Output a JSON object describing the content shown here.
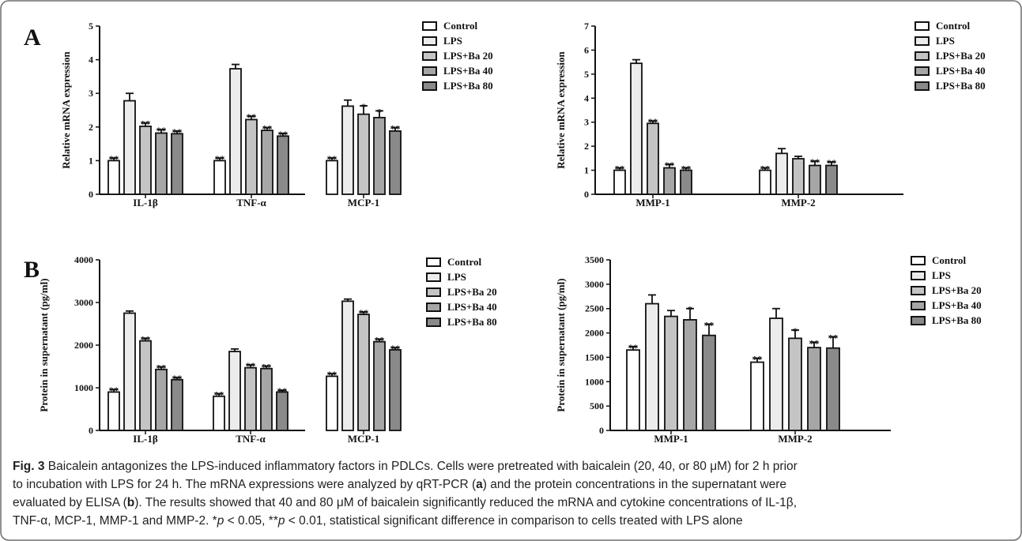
{
  "panels": {
    "a": {
      "letter": "A"
    },
    "b": {
      "letter": "B"
    }
  },
  "series_colors": [
    "#ffffff",
    "#ececec",
    "#c4c4c4",
    "#a6a6a6",
    "#8a8a8a"
  ],
  "chart_data": [
    {
      "type": "bar",
      "panel": "A",
      "ylabel": "Relative mRNA expression",
      "ylim": [
        0,
        5
      ],
      "yticks": [
        0,
        1,
        2,
        3,
        4,
        5
      ],
      "categories": [
        "IL-1β",
        "TNF-α",
        "MCP-1"
      ],
      "series": [
        {
          "name": "Control",
          "values": [
            1.0,
            1.0,
            1.0
          ],
          "errors": [
            0.08,
            0.08,
            0.08
          ],
          "sig": [
            "**",
            "**",
            "**"
          ]
        },
        {
          "name": "LPS",
          "values": [
            2.78,
            3.73,
            2.62
          ],
          "errors": [
            0.22,
            0.13,
            0.18
          ],
          "sig": [
            "",
            "",
            ""
          ]
        },
        {
          "name": "LPS+Ba 20",
          "values": [
            2.02,
            2.22,
            2.38
          ],
          "errors": [
            0.1,
            0.1,
            0.25
          ],
          "sig": [
            "**",
            "**",
            "*"
          ]
        },
        {
          "name": "LPS+Ba 40",
          "values": [
            1.82,
            1.9,
            2.28
          ],
          "errors": [
            0.1,
            0.08,
            0.2
          ],
          "sig": [
            "**",
            "**",
            "*"
          ]
        },
        {
          "name": "LPS+Ba 80",
          "values": [
            1.8,
            1.73,
            1.88
          ],
          "errors": [
            0.08,
            0.08,
            0.1
          ],
          "sig": [
            "**",
            "**",
            "**"
          ]
        }
      ],
      "legend": "right"
    },
    {
      "type": "bar",
      "panel": "A",
      "ylabel": "Relative mRNA expression",
      "ylim": [
        0,
        7
      ],
      "yticks": [
        0,
        1,
        2,
        3,
        4,
        5,
        6,
        7
      ],
      "categories": [
        "MMP-1",
        "MMP-2"
      ],
      "series": [
        {
          "name": "Control",
          "values": [
            1.0,
            1.0
          ],
          "errors": [
            0.1,
            0.1
          ],
          "sig": [
            "**",
            "**"
          ]
        },
        {
          "name": "LPS",
          "values": [
            5.45,
            1.7
          ],
          "errors": [
            0.15,
            0.2
          ],
          "sig": [
            "",
            ""
          ]
        },
        {
          "name": "LPS+Ba 20",
          "values": [
            2.95,
            1.48
          ],
          "errors": [
            0.1,
            0.1
          ],
          "sig": [
            "**",
            ""
          ]
        },
        {
          "name": "LPS+Ba 40",
          "values": [
            1.1,
            1.2
          ],
          "errors": [
            0.15,
            0.18
          ],
          "sig": [
            "**",
            "**"
          ]
        },
        {
          "name": "LPS+Ba 80",
          "values": [
            1.0,
            1.2
          ],
          "errors": [
            0.1,
            0.15
          ],
          "sig": [
            "**",
            "**"
          ]
        }
      ],
      "legend": "right"
    },
    {
      "type": "bar",
      "panel": "B",
      "ylabel": "Protein in  supernatant (pg/ml)",
      "ylim": [
        0,
        4000
      ],
      "yticks": [
        0,
        1000,
        2000,
        3000,
        4000
      ],
      "categories": [
        "IL-1β",
        "TNF-α",
        "MCP-1"
      ],
      "series": [
        {
          "name": "Control",
          "values": [
            900,
            800,
            1270
          ],
          "errors": [
            60,
            60,
            60
          ],
          "sig": [
            "**",
            "**",
            "**"
          ]
        },
        {
          "name": "LPS",
          "values": [
            2750,
            1850,
            3030
          ],
          "errors": [
            50,
            60,
            50
          ],
          "sig": [
            "",
            "",
            ""
          ]
        },
        {
          "name": "LPS+Ba 20",
          "values": [
            2100,
            1470,
            2720
          ],
          "errors": [
            60,
            70,
            60
          ],
          "sig": [
            "**",
            "**",
            "**"
          ]
        },
        {
          "name": "LPS+Ba 40",
          "values": [
            1430,
            1450,
            2080
          ],
          "errors": [
            60,
            60,
            60
          ],
          "sig": [
            "**",
            "**",
            "**"
          ]
        },
        {
          "name": "LPS+Ba 80",
          "values": [
            1190,
            900,
            1890
          ],
          "errors": [
            50,
            40,
            50
          ],
          "sig": [
            "**",
            "**",
            "**"
          ]
        }
      ],
      "legend": "right"
    },
    {
      "type": "bar",
      "panel": "B",
      "ylabel": "Protein in supernatant (pg/ml)",
      "ylim": [
        0,
        3500
      ],
      "yticks": [
        0,
        500,
        1000,
        1500,
        2000,
        2500,
        3000,
        3500
      ],
      "categories": [
        "MMP-1",
        "MMP-2"
      ],
      "series": [
        {
          "name": "Control",
          "values": [
            1650,
            1400
          ],
          "errors": [
            70,
            80
          ],
          "sig": [
            "**",
            "**"
          ]
        },
        {
          "name": "LPS",
          "values": [
            2600,
            2300
          ],
          "errors": [
            180,
            200
          ],
          "sig": [
            "",
            ""
          ]
        },
        {
          "name": "LPS+Ba 20",
          "values": [
            2340,
            1890
          ],
          "errors": [
            120,
            170
          ],
          "sig": [
            "",
            "*"
          ]
        },
        {
          "name": "LPS+Ba 40",
          "values": [
            2270,
            1700
          ],
          "errors": [
            230,
            110
          ],
          "sig": [
            "*",
            "**"
          ]
        },
        {
          "name": "LPS+Ba 80",
          "values": [
            1950,
            1690
          ],
          "errors": [
            230,
            230
          ],
          "sig": [
            "**",
            "**"
          ]
        }
      ],
      "legend": "right"
    }
  ],
  "caption": {
    "label": "Fig. 3",
    "line1": "Baicalein antagonizes the LPS-induced inflammatory factors in PDLCs. Cells were pretreated with baicalein (20, 40, or 80 μM) for 2 h prior",
    "line2a": "to incubation with LPS for 24 h. The mRNA expressions were analyzed by qRT-PCR (",
    "ref_a": "a",
    "line2b": ") and the protein concentrations in the supernatant were",
    "line3a": "evaluated by ELISA (",
    "ref_b": "b",
    "line3b": "). The results showed that 40 and 80 μM of baicalein significantly reduced the mRNA and cytokine concentrations of IL-1β,",
    "line4a": "TNF-α, MCP-1, MMP-1 and MMP-2. *",
    "p1": "p",
    "line4b": " < 0.05, **",
    "p2": "p",
    "line4c": " < 0.01, statistical significant difference in comparison to cells treated with LPS alone"
  }
}
